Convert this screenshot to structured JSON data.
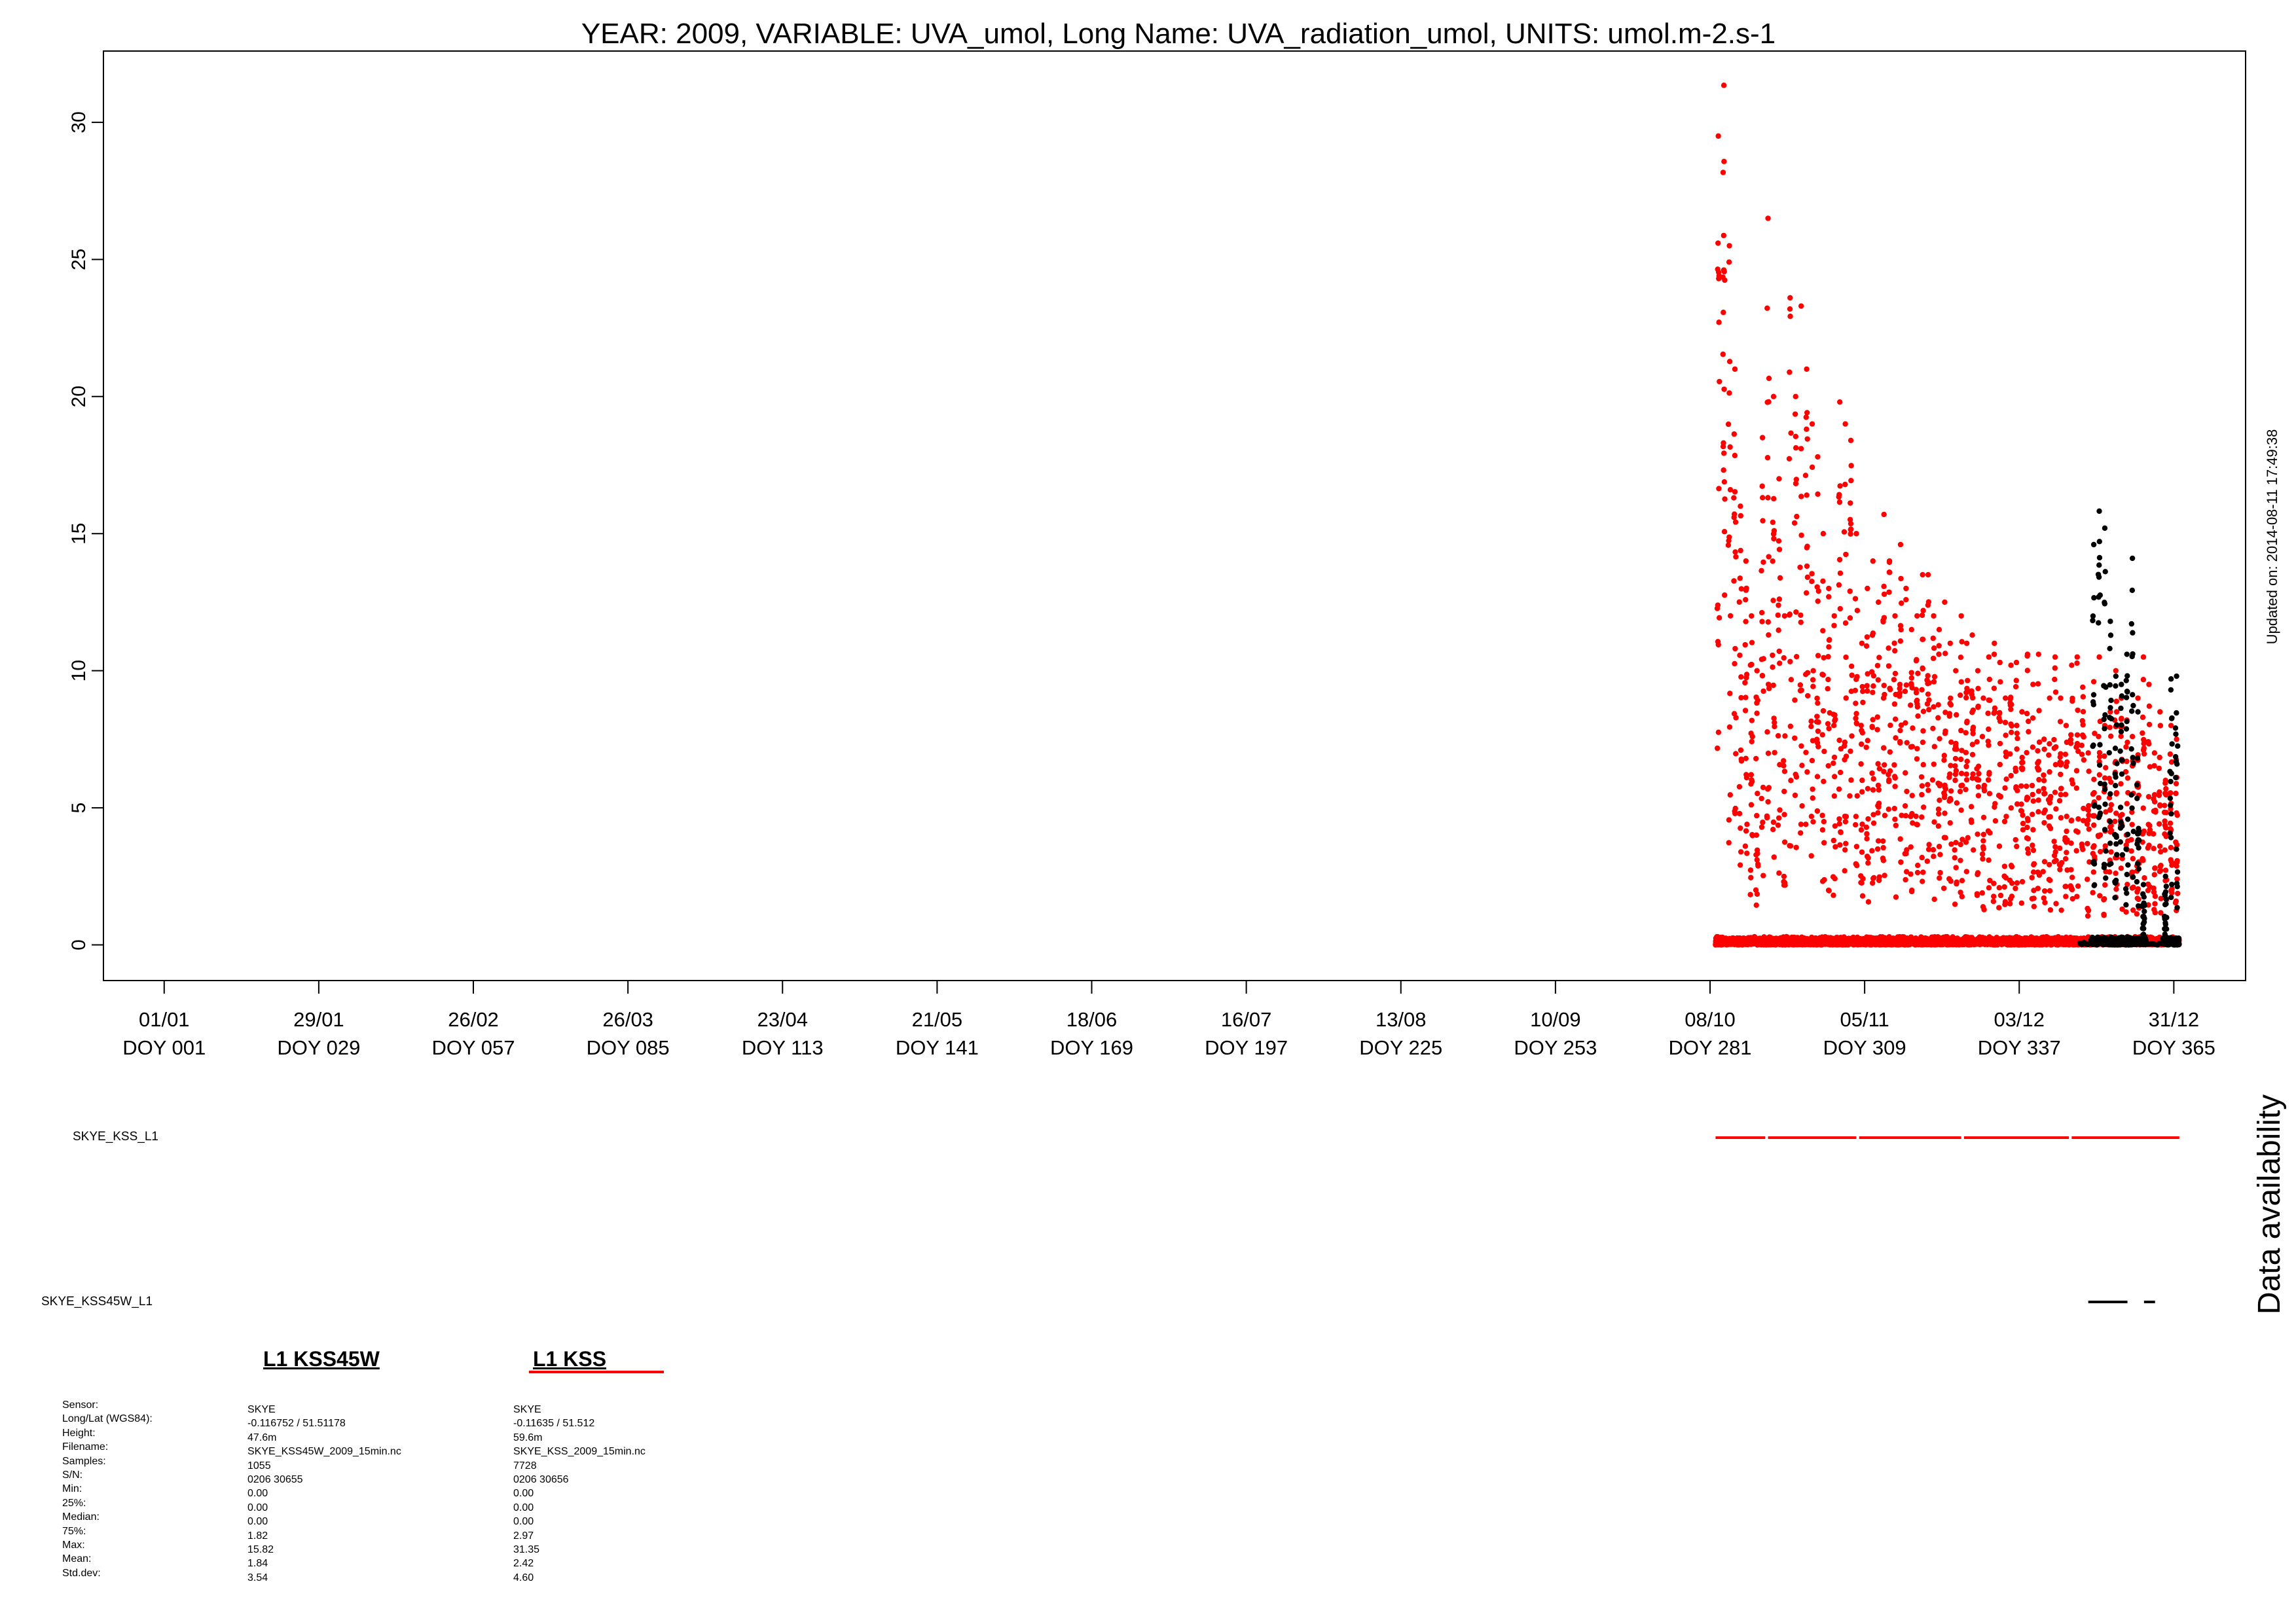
{
  "chart_data": {
    "type": "scatter",
    "title": "YEAR: 2009, VARIABLE: UVA_umol, Long Name: UVA_radiation_umol, UNITS: umol.m-2.s-1",
    "xlabel": "",
    "ylabel": "",
    "x_unit": "day of year",
    "xlim": [
      -10,
      378
    ],
    "ylim": [
      -1.3,
      32.6
    ],
    "y_ticks": [
      0,
      5,
      10,
      15,
      20,
      25,
      30
    ],
    "x_ticks": [
      {
        "doy": 1,
        "date": "01/01",
        "label": "DOY 001"
      },
      {
        "doy": 29,
        "date": "29/01",
        "label": "DOY 029"
      },
      {
        "doy": 57,
        "date": "26/02",
        "label": "DOY 057"
      },
      {
        "doy": 85,
        "date": "26/03",
        "label": "DOY 085"
      },
      {
        "doy": 113,
        "date": "23/04",
        "label": "DOY 113"
      },
      {
        "doy": 141,
        "date": "21/05",
        "label": "DOY 141"
      },
      {
        "doy": 169,
        "date": "18/06",
        "label": "DOY 169"
      },
      {
        "doy": 197,
        "date": "16/07",
        "label": "DOY 197"
      },
      {
        "doy": 225,
        "date": "13/08",
        "label": "DOY 225"
      },
      {
        "doy": 253,
        "date": "10/09",
        "label": "DOY 253"
      },
      {
        "doy": 281,
        "date": "08/10",
        "label": "DOY 281"
      },
      {
        "doy": 309,
        "date": "05/11",
        "label": "DOY 309"
      },
      {
        "doy": 337,
        "date": "03/12",
        "label": "DOY 337"
      },
      {
        "doy": 365,
        "date": "31/12",
        "label": "DOY 365"
      }
    ],
    "series": [
      {
        "name": "L1 KSS",
        "color": "#ff0000",
        "doy_range": [
          282,
          365.5
        ],
        "daily_peak": [
          [
            282,
            29.5
          ],
          [
            283,
            31.35
          ],
          [
            284,
            25.5
          ],
          [
            285,
            21
          ],
          [
            286,
            16
          ],
          [
            287,
            14
          ],
          [
            288,
            12
          ],
          [
            289,
            10
          ],
          [
            290,
            18.5
          ],
          [
            291,
            26.5
          ],
          [
            292,
            20
          ],
          [
            293,
            17
          ],
          [
            294,
            12
          ],
          [
            295,
            23.6
          ],
          [
            296,
            20
          ],
          [
            297,
            23.3
          ],
          [
            298,
            21
          ],
          [
            299,
            19
          ],
          [
            300,
            17.8
          ],
          [
            301,
            15
          ],
          [
            302,
            13
          ],
          [
            303,
            12
          ],
          [
            304,
            19.8
          ],
          [
            305,
            19
          ],
          [
            306,
            18.4
          ],
          [
            307,
            15
          ],
          [
            308,
            11
          ],
          [
            309,
            13
          ],
          [
            310,
            14
          ],
          [
            311,
            12.5
          ],
          [
            312,
            15.7
          ],
          [
            313,
            14
          ],
          [
            314,
            12
          ],
          [
            315,
            14.6
          ],
          [
            316,
            13
          ],
          [
            317,
            11.5
          ],
          [
            318,
            12
          ],
          [
            319,
            13.5
          ],
          [
            320,
            13.5
          ],
          [
            321,
            12
          ],
          [
            322,
            11.5
          ],
          [
            323,
            12.5
          ],
          [
            324,
            11
          ],
          [
            325,
            10
          ],
          [
            326,
            12
          ],
          [
            327,
            11
          ],
          [
            328,
            11.3
          ],
          [
            329,
            10
          ],
          [
            330,
            9
          ],
          [
            331,
            10.5
          ],
          [
            332,
            11
          ],
          [
            333,
            10.3
          ],
          [
            334,
            9
          ],
          [
            335,
            10.2
          ],
          [
            336,
            10.3
          ],
          [
            337,
            8.5
          ],
          [
            338,
            10.6
          ],
          [
            339,
            9.5
          ],
          [
            340,
            10.6
          ],
          [
            341,
            7.5
          ],
          [
            342,
            9
          ],
          [
            343,
            10.5
          ],
          [
            344,
            9
          ],
          [
            345,
            8
          ],
          [
            346,
            10.2
          ],
          [
            347,
            10.5
          ],
          [
            348,
            9.4
          ],
          [
            349,
            7
          ],
          [
            350,
            9.6
          ],
          [
            351,
            10.5
          ],
          [
            352,
            8
          ],
          [
            353,
            8.5
          ],
          [
            354,
            10
          ],
          [
            355,
            9
          ],
          [
            356,
            8.2
          ],
          [
            357,
            7.6
          ],
          [
            358,
            9
          ],
          [
            359,
            10.5
          ],
          [
            360,
            9.5
          ],
          [
            361,
            7
          ],
          [
            362,
            8.5
          ],
          [
            363,
            6
          ],
          [
            364,
            8
          ],
          [
            365,
            7.5
          ]
        ]
      },
      {
        "name": "L1 KSS45W",
        "color": "#000000",
        "doy_range": [
          348,
          365.5
        ],
        "daily_peak": [
          [
            350,
            14.6
          ],
          [
            351,
            15.82
          ],
          [
            352,
            15.2
          ],
          [
            353,
            11.8
          ],
          [
            354,
            9.8
          ],
          [
            355,
            9.5
          ],
          [
            356,
            10.6
          ],
          [
            357,
            14.1
          ],
          [
            358,
            8.5
          ],
          [
            359,
            2.2
          ],
          [
            363,
            2.5
          ],
          [
            364,
            9.7
          ],
          [
            365,
            9.8
          ]
        ]
      }
    ],
    "availability": {
      "label": "Data availability",
      "rows": [
        {
          "name": "SKYE_KSS_L1",
          "color": "#ff0000",
          "segments": [
            [
              282,
              291
            ],
            [
              291.5,
              307.5
            ],
            [
              308,
              326.5
            ],
            [
              327,
              346
            ],
            [
              346.5,
              366
            ]
          ]
        },
        {
          "name": "SKYE_KSS45W_L1",
          "color": "#000000",
          "segments": [
            [
              349.5,
              356.6
            ],
            [
              359.6,
              361.6
            ]
          ]
        }
      ]
    },
    "legend": {
      "placement": "bottom-left",
      "row_headers": [
        "Sensor:",
        "Long/Lat (WGS84):",
        "Height:",
        "Filename:",
        "Samples:",
        "S/N:",
        "Min:",
        "25%:",
        "Median:",
        "75%:",
        "Max:",
        "Mean:",
        "Std.dev:"
      ],
      "entries": [
        {
          "title": "L1 KSS45W",
          "color": "#000000",
          "values": [
            "SKYE",
            "-0.116752 / 51.51178",
            "47.6m",
            "SKYE_KSS45W_2009_15min.nc",
            "1055",
            "0206 30655",
            "0.00",
            "0.00",
            "0.00",
            "1.82",
            "15.82",
            "1.84",
            "3.54"
          ]
        },
        {
          "title": "L1 KSS",
          "color": "#ff0000",
          "values": [
            "SKYE",
            "-0.11635 / 51.512",
            "59.6m",
            "SKYE_KSS_2009_15min.nc",
            "7728",
            "0206 30656",
            "0.00",
            "0.00",
            "0.00",
            "2.97",
            "31.35",
            "2.42",
            "4.60"
          ]
        }
      ]
    },
    "updated_note": "Updated on: 2014-08-11 17:49:38"
  }
}
